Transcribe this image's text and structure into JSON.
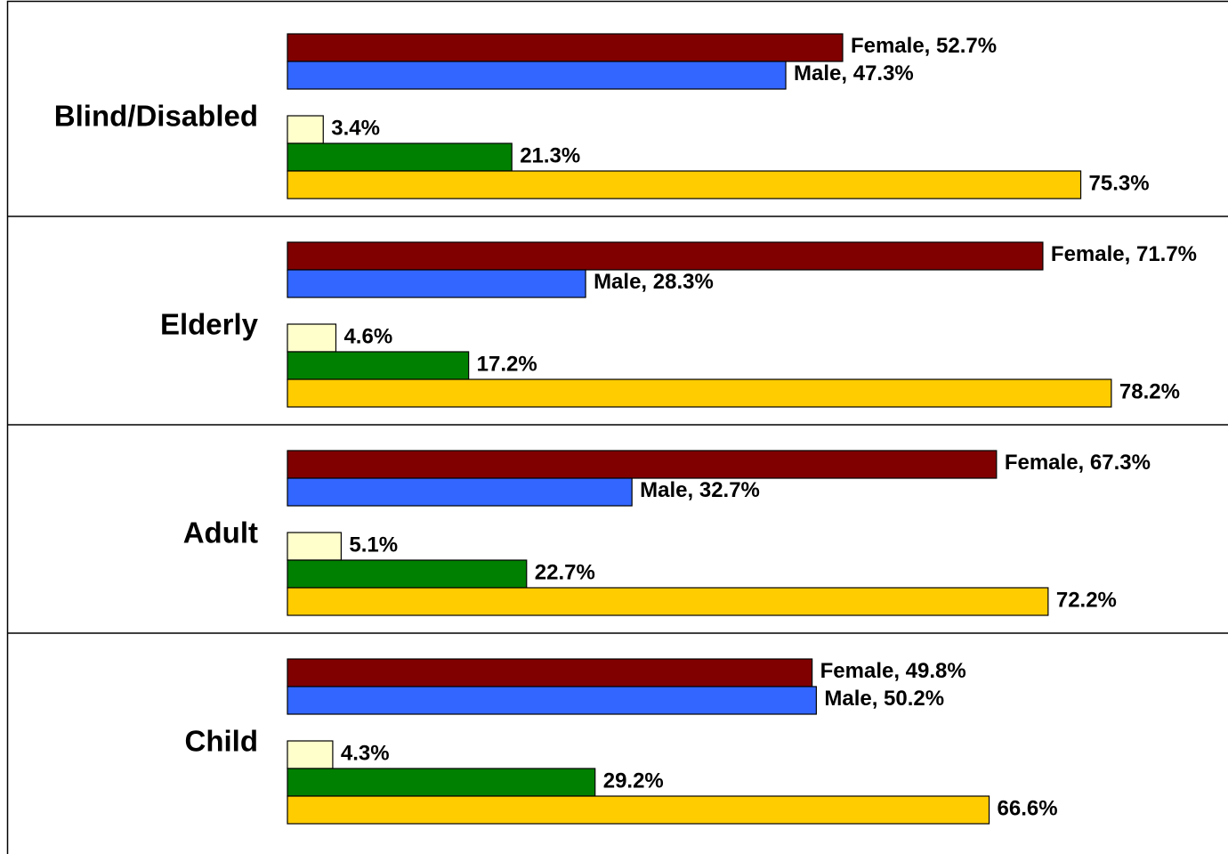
{
  "chart_data": {
    "type": "bar",
    "orientation": "horizontal",
    "categories": [
      "Blind/Disabled",
      "Elderly",
      "Adult",
      "Child"
    ],
    "series": [
      {
        "name": "Female",
        "color": "#800000",
        "values": [
          52.7,
          71.7,
          67.3,
          49.8
        ],
        "value_labels": [
          "Female, 52.7%",
          "Female, 71.7%",
          "Female, 67.3%",
          "Female, 49.8%"
        ]
      },
      {
        "name": "Male",
        "color": "#3366ff",
        "values": [
          47.3,
          28.3,
          32.7,
          50.2
        ],
        "value_labels": [
          "Male, 47.3%",
          "Male, 28.3%",
          "Male, 32.7%",
          "Male, 50.2%"
        ]
      },
      {
        "color": "#ffffcc",
        "values": [
          3.4,
          4.6,
          5.1,
          4.3
        ],
        "value_labels": [
          "3.4%",
          "4.6%",
          "5.1%",
          "4.3%"
        ]
      },
      {
        "color": "#008000",
        "values": [
          21.3,
          17.2,
          22.7,
          29.2
        ],
        "value_labels": [
          "21.3%",
          "17.2%",
          "22.7%",
          "29.2%"
        ]
      },
      {
        "color": "#ffcc00",
        "values": [
          75.3,
          78.2,
          72.2,
          66.6
        ],
        "value_labels": [
          "75.3%",
          "78.2%",
          "72.2%",
          "66.6%"
        ]
      }
    ],
    "xlim": [
      0,
      100
    ]
  }
}
